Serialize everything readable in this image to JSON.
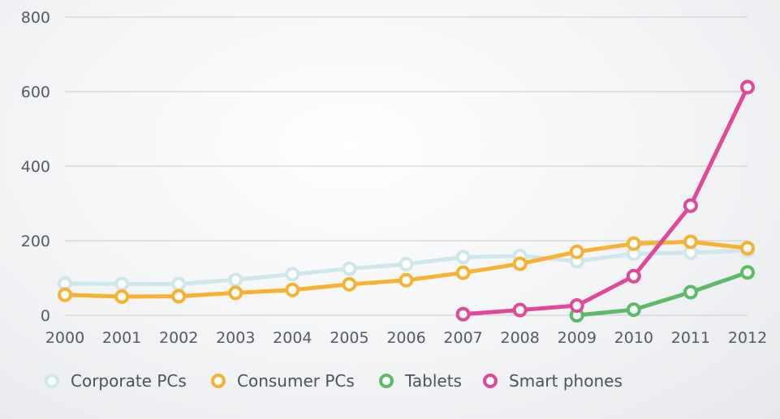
{
  "chart_data": {
    "type": "line",
    "title": "",
    "xlabel": "",
    "ylabel": "",
    "x": [
      "2000",
      "2001",
      "2002",
      "2003",
      "2004",
      "2005",
      "2006",
      "2007",
      "2008",
      "2009",
      "2010",
      "2011",
      "2012"
    ],
    "ylim": [
      0,
      800
    ],
    "yticks": [
      "0",
      "200",
      "400",
      "600",
      "800"
    ],
    "grid": true,
    "legend_position": "bottom-left",
    "series": [
      {
        "name": "Corporate PCs",
        "color": "#cfe6ea",
        "values": [
          85,
          84,
          84,
          95,
          110,
          125,
          137,
          156,
          159,
          145,
          165,
          168,
          173
        ]
      },
      {
        "name": "Consumer PCs",
        "color": "#f7b233",
        "values": [
          55,
          50,
          51,
          60,
          68,
          83,
          94,
          114,
          138,
          170,
          192,
          197,
          180
        ]
      },
      {
        "name": "Tablets",
        "color": "#5dba6a",
        "values": [
          null,
          null,
          null,
          null,
          null,
          null,
          null,
          null,
          null,
          0,
          15,
          62,
          115
        ]
      },
      {
        "name": "Smart phones",
        "color": "#e2489a",
        "values": [
          null,
          null,
          null,
          null,
          null,
          null,
          null,
          3,
          14,
          26,
          105,
          294,
          612
        ]
      }
    ]
  }
}
